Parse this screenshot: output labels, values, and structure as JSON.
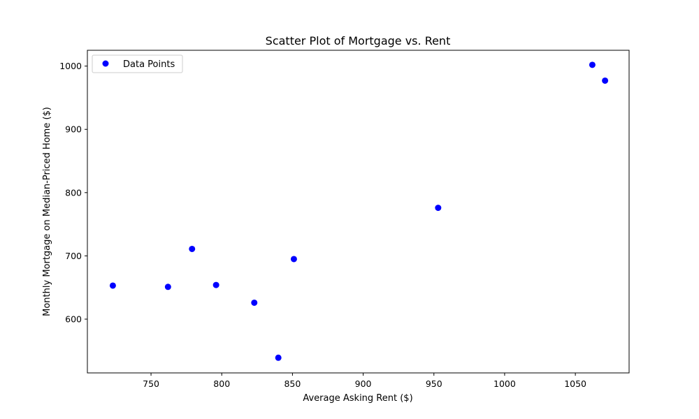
{
  "chart_data": {
    "type": "scatter",
    "title": "Scatter Plot of Mortgage vs. Rent",
    "xlabel": "Average Asking Rent ($)",
    "ylabel": "Monthly Mortgage on Median-Priced Home ($)",
    "xlim": [
      705,
      1088
    ],
    "ylim": [
      515,
      1025
    ],
    "xticks": [
      750,
      800,
      850,
      900,
      950,
      1000,
      1050
    ],
    "yticks": [
      600,
      700,
      800,
      900,
      1000
    ],
    "grid": false,
    "legend_position": "top-left",
    "series": [
      {
        "name": "Data Points",
        "color": "#0000ff",
        "points": [
          {
            "x": 723,
            "y": 653
          },
          {
            "x": 762,
            "y": 651
          },
          {
            "x": 779,
            "y": 711
          },
          {
            "x": 796,
            "y": 654
          },
          {
            "x": 823,
            "y": 626
          },
          {
            "x": 840,
            "y": 539
          },
          {
            "x": 851,
            "y": 695
          },
          {
            "x": 953,
            "y": 776
          },
          {
            "x": 1062,
            "y": 1002
          },
          {
            "x": 1071,
            "y": 977
          }
        ]
      }
    ]
  }
}
